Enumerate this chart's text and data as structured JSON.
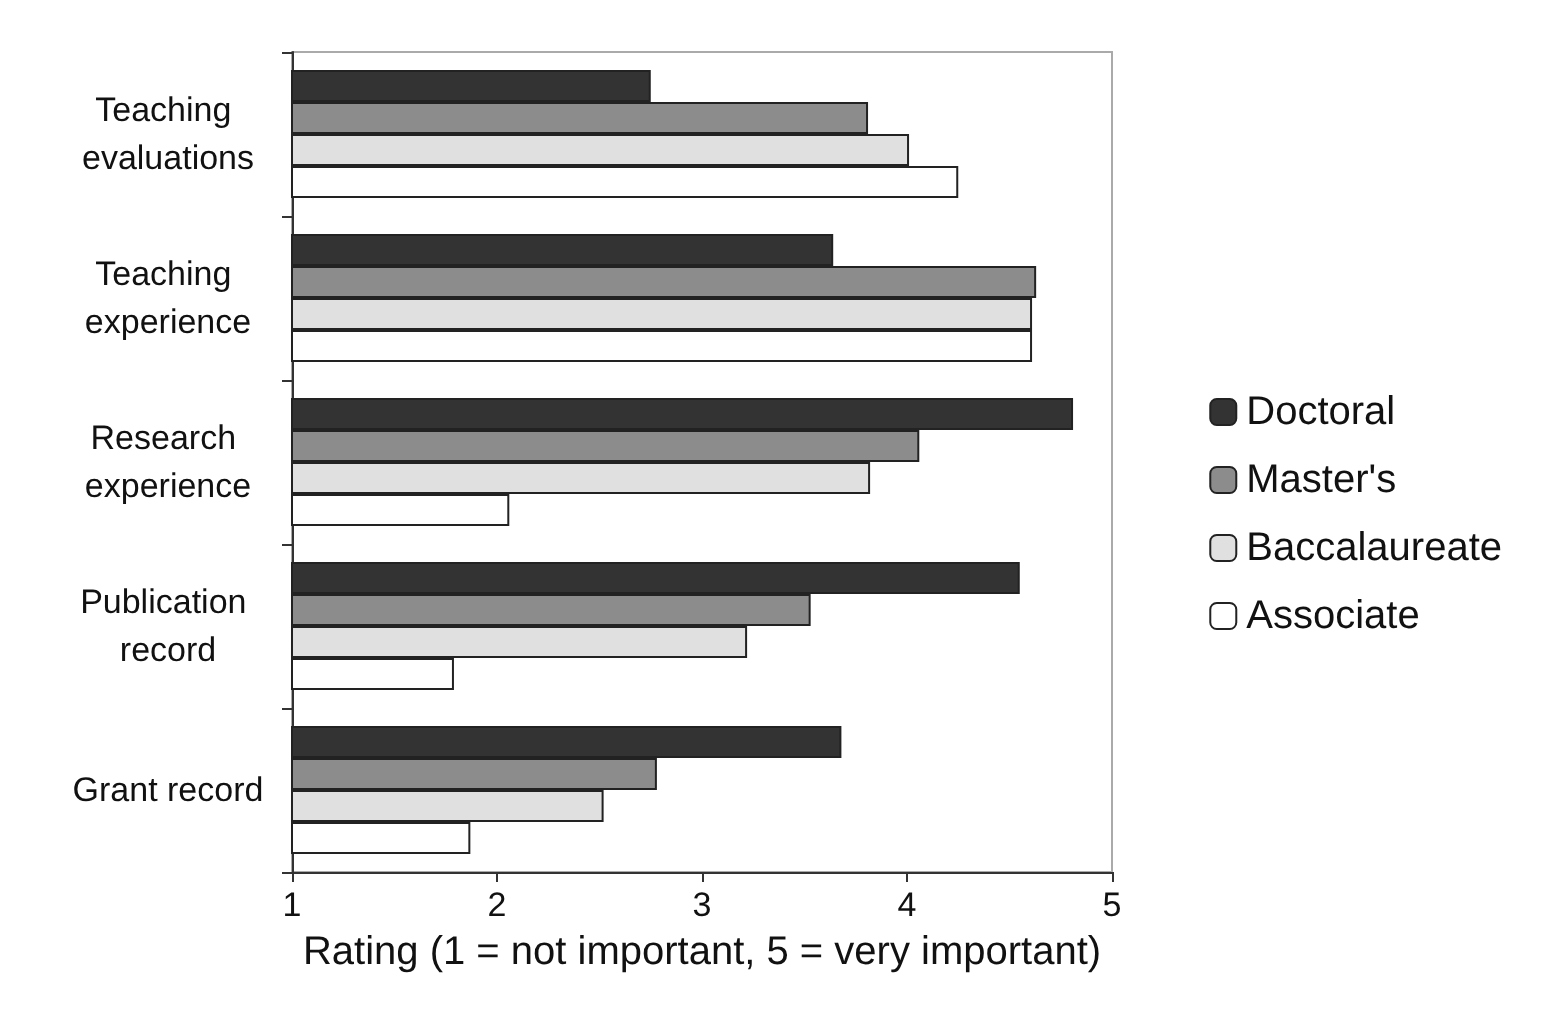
{
  "chart_data": {
    "type": "bar",
    "orientation": "horizontal",
    "xlabel": "Rating (1 = not important, 5 = very important)",
    "categories": [
      "Teaching evaluations",
      "Teaching experience",
      "Research experience",
      "Publication record",
      "Grant record"
    ],
    "series": [
      {
        "name": "Doctoral",
        "color": "#333333",
        "values": [
          2.75,
          3.64,
          4.81,
          4.55,
          3.68
        ]
      },
      {
        "name": "Master's",
        "color": "#8c8c8c",
        "values": [
          3.81,
          4.63,
          4.06,
          3.53,
          2.78
        ]
      },
      {
        "name": "Baccalaureate",
        "color": "#e0e0e0",
        "values": [
          4.01,
          4.61,
          3.82,
          3.22,
          2.52
        ]
      },
      {
        "name": "Associate",
        "color": "#ffffff",
        "values": [
          4.25,
          4.61,
          2.06,
          1.79,
          1.87
        ]
      }
    ],
    "xlim": [
      1,
      5
    ],
    "xticks": [
      1,
      2,
      3,
      4,
      5
    ],
    "grid": false,
    "legend": "right"
  }
}
